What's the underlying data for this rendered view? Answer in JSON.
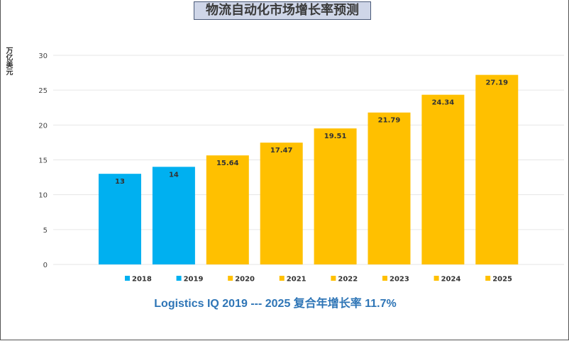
{
  "colors": {
    "actual": "#00b0f0",
    "forecast": "#ffc000",
    "grid": "#e6e6e6",
    "footer": "#2e75b6"
  },
  "chart_data": {
    "type": "bar",
    "title": "物流自动化市场增长率预测",
    "ylabel": "万亿美元",
    "xlabel": "",
    "ylim": [
      0,
      30
    ],
    "yticks": [
      0,
      5,
      10,
      15,
      20,
      25,
      30
    ],
    "grid": true,
    "legend_position": "bottom",
    "categories": [
      "2018",
      "2019",
      "2020",
      "2021",
      "2022",
      "2023",
      "2024",
      "2025"
    ],
    "values": [
      13,
      14,
      15.64,
      17.47,
      19.51,
      21.79,
      24.34,
      27.19
    ],
    "data_labels": [
      "13",
      "14",
      "15.64",
      "17.47",
      "19.51",
      "21.79",
      "24.34",
      "27.19"
    ],
    "bar_colors": [
      "#00b0f0",
      "#00b0f0",
      "#ffc000",
      "#ffc000",
      "#ffc000",
      "#ffc000",
      "#ffc000",
      "#ffc000"
    ]
  },
  "footer_text": "Logistics IQ  2019 --- 2025 复合年增长率 11.7%"
}
